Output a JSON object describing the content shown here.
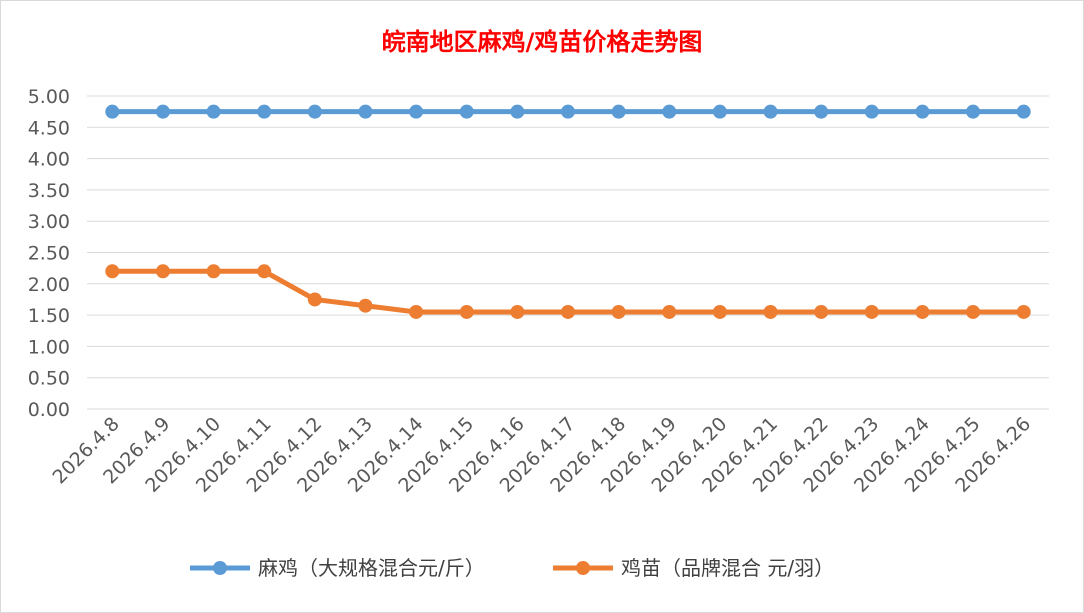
{
  "chart_data": {
    "type": "line",
    "title": "皖南地区麻鸡/鸡苗价格走势图",
    "categories": [
      "2026.4.8",
      "2026.4.9",
      "2026.4.10",
      "2026.4.11",
      "2026.4.12",
      "2026.4.13",
      "2026.4.14",
      "2026.4.15",
      "2026.4.16",
      "2026.4.17",
      "2026.4.18",
      "2026.4.19",
      "2026.4.20",
      "2026.4.21",
      "2026.4.22",
      "2026.4.23",
      "2026.4.24",
      "2026.4.25",
      "2026.4.26"
    ],
    "series": [
      {
        "name": "麻鸡（大规格混合元/斤）",
        "color": "#5b9bd5",
        "values": [
          4.75,
          4.75,
          4.75,
          4.75,
          4.75,
          4.75,
          4.75,
          4.75,
          4.75,
          4.75,
          4.75,
          4.75,
          4.75,
          4.75,
          4.75,
          4.75,
          4.75,
          4.75,
          4.75
        ]
      },
      {
        "name": "鸡苗（品牌混合 元/羽）",
        "color": "#ed7d31",
        "values": [
          2.2,
          2.2,
          2.2,
          2.2,
          1.75,
          1.65,
          1.55,
          1.55,
          1.55,
          1.55,
          1.55,
          1.55,
          1.55,
          1.55,
          1.55,
          1.55,
          1.55,
          1.55,
          1.55
        ]
      }
    ],
    "yticks": [
      "0.00",
      "0.50",
      "1.00",
      "1.50",
      "2.00",
      "2.50",
      "3.00",
      "3.50",
      "4.00",
      "4.50",
      "5.00"
    ],
    "ylim": [
      0,
      5
    ],
    "grid": true,
    "legend_position": "bottom",
    "title_color": "#ff0000"
  }
}
